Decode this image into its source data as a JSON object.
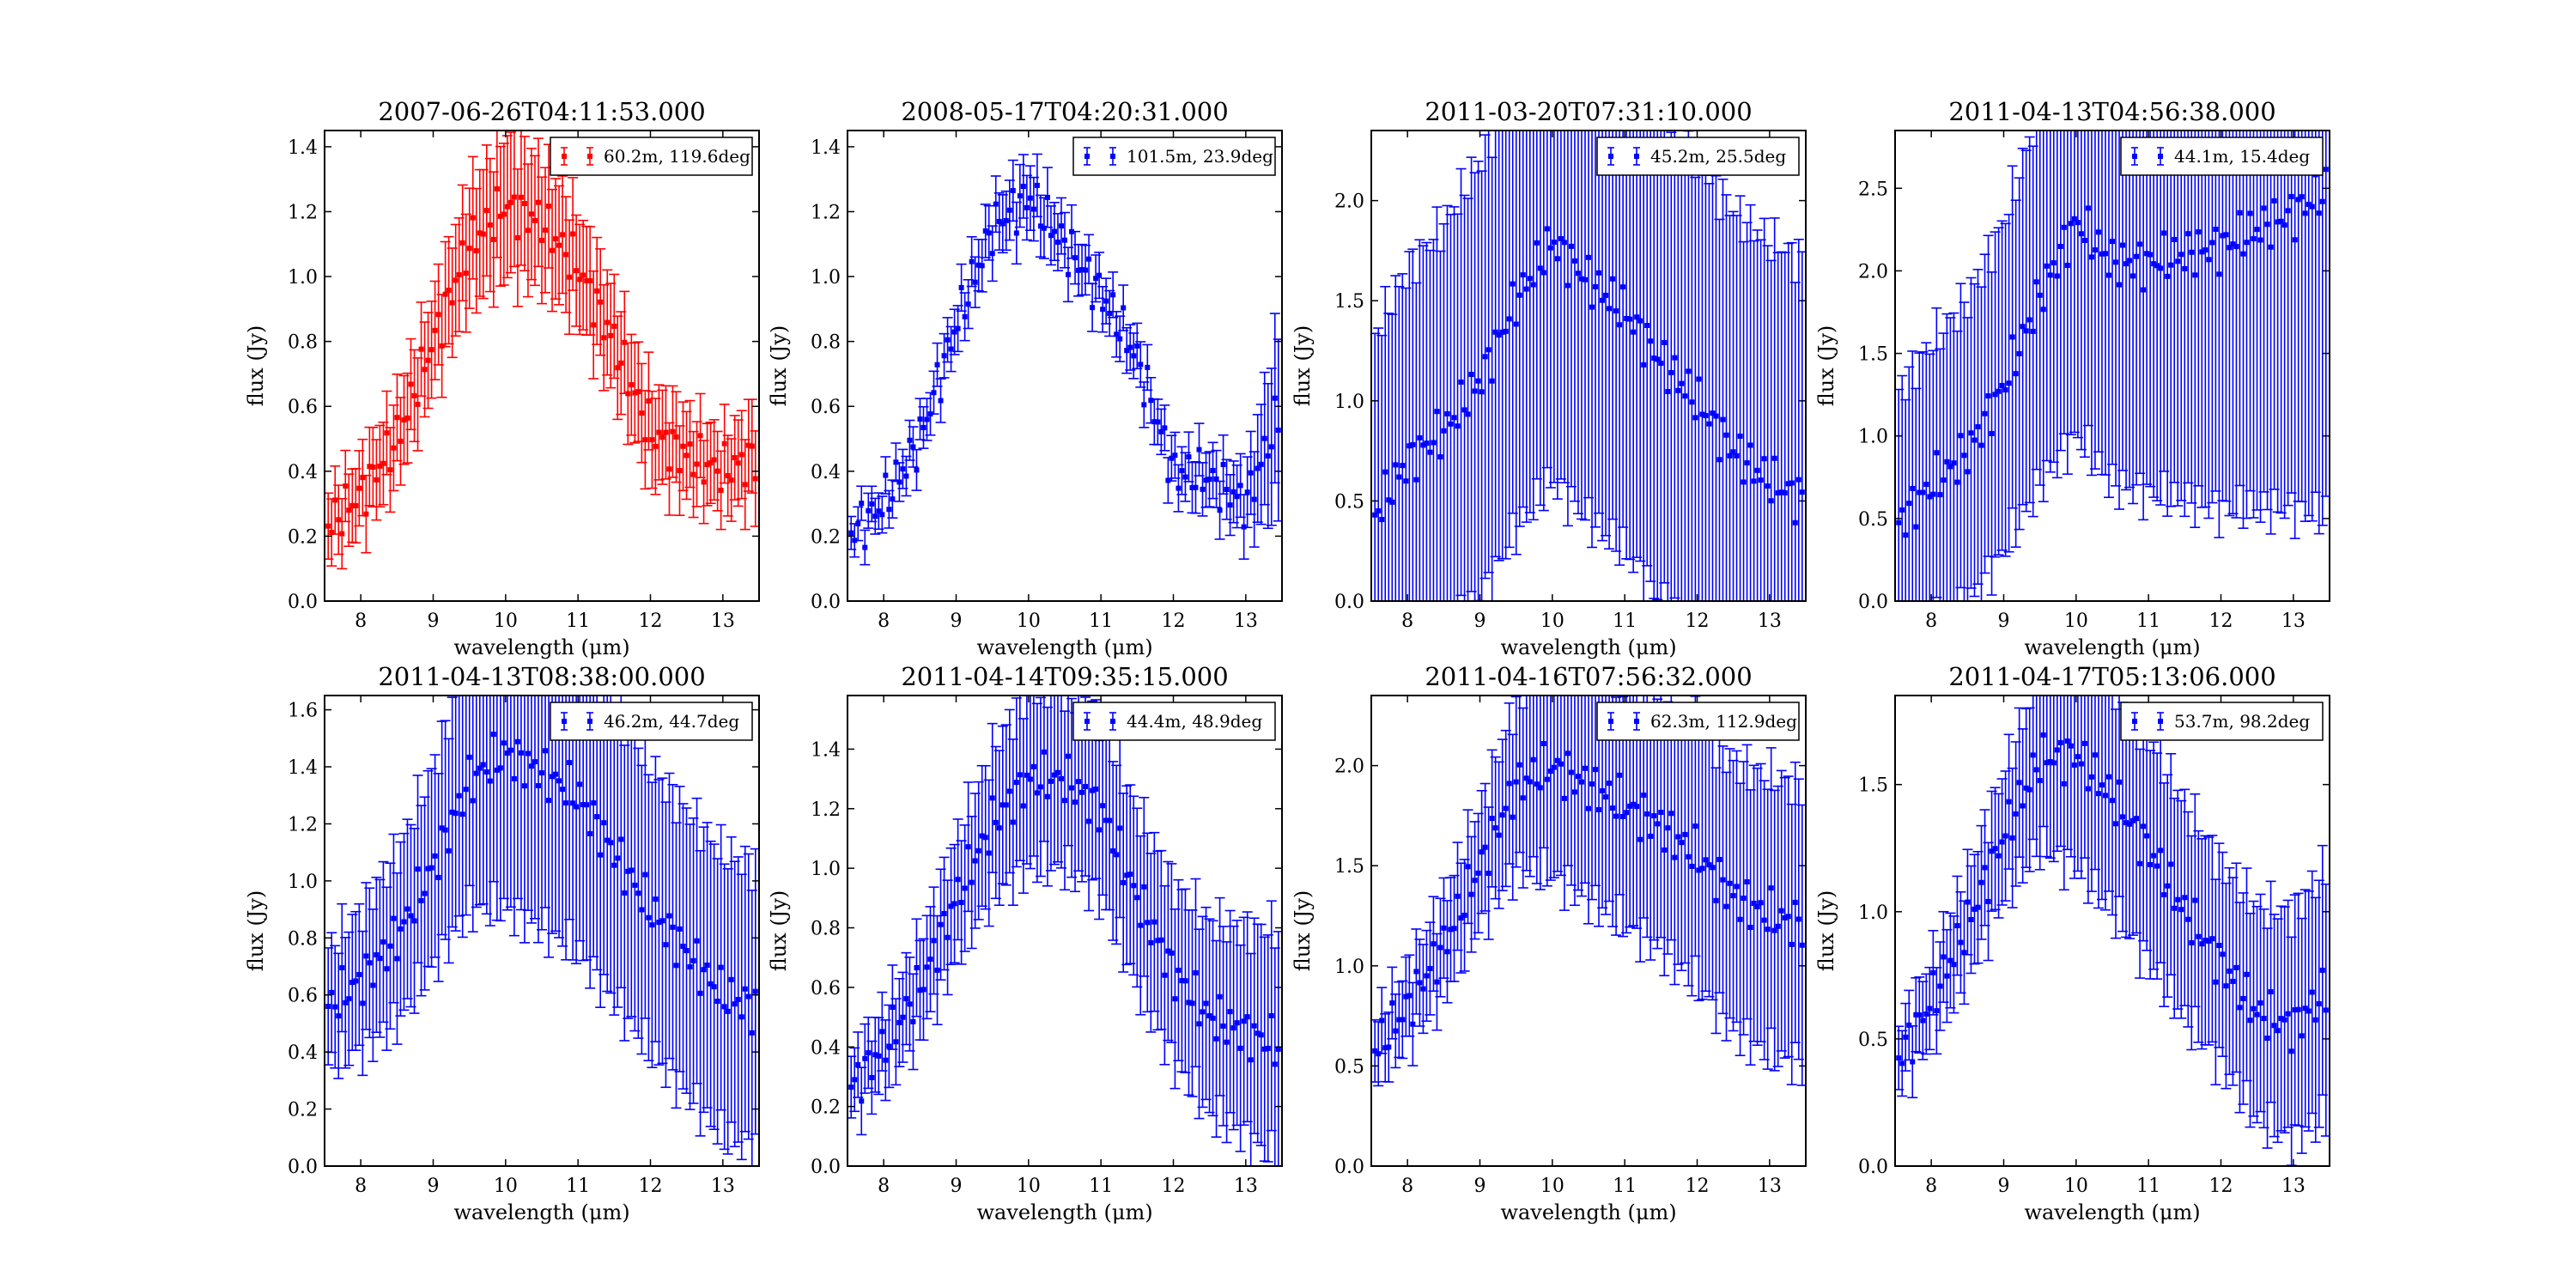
{
  "figure": {
    "xlabel": "wavelength (μm)",
    "ylabel": "flux (Jy)"
  },
  "chart_data": [
    {
      "type": "scatter",
      "title": "2007-06-26T04:11:53.000",
      "xlabel": "wavelength (μm)",
      "ylabel": "flux (Jy)",
      "xlim": [
        7.5,
        13.5
      ],
      "ylim": [
        0.0,
        1.45
      ],
      "xticks": [
        8,
        9,
        10,
        11,
        12,
        13
      ],
      "yticks": [
        0.0,
        0.2,
        0.4,
        0.6,
        0.8,
        1.0,
        1.2,
        1.4
      ],
      "color": "#ff0000",
      "legend_position": "top-right",
      "series": [
        {
          "name": "60.2m, 119.6deg",
          "x_range": [
            7.55,
            13.45
          ],
          "n_points": 125,
          "profile": {
            "x": [
              7.5,
              8.0,
              8.5,
              9.0,
              9.5,
              10.0,
              10.5,
              11.0,
              11.5,
              12.0,
              12.5,
              13.0,
              13.5
            ],
            "y": [
              0.22,
              0.33,
              0.5,
              0.8,
              1.1,
              1.22,
              1.17,
              1.03,
              0.8,
              0.52,
              0.45,
              0.4,
              0.45
            ]
          },
          "error": {
            "x": [
              7.5,
              9.0,
              10.0,
              11.0,
              12.0,
              13.0,
              13.5
            ],
            "yerr": [
              0.1,
              0.15,
              0.22,
              0.17,
              0.15,
              0.12,
              0.15
            ]
          }
        }
      ]
    },
    {
      "type": "scatter",
      "title": "2008-05-17T04:20:31.000",
      "xlabel": "wavelength (μm)",
      "ylabel": "flux (Jy)",
      "xlim": [
        7.5,
        13.5
      ],
      "ylim": [
        0.0,
        1.45
      ],
      "xticks": [
        8,
        9,
        10,
        11,
        12,
        13
      ],
      "yticks": [
        0.0,
        0.2,
        0.4,
        0.6,
        0.8,
        1.0,
        1.2,
        1.4
      ],
      "color": "#0000ff",
      "legend_position": "top-right",
      "series": [
        {
          "name": "101.5m, 23.9deg",
          "x_range": [
            7.55,
            13.45
          ],
          "n_points": 125,
          "profile": {
            "x": [
              7.5,
              8.0,
              8.5,
              9.0,
              9.5,
              10.0,
              10.5,
              11.0,
              11.5,
              12.0,
              12.5,
              13.0,
              13.5
            ],
            "y": [
              0.2,
              0.3,
              0.5,
              0.85,
              1.15,
              1.25,
              1.1,
              0.95,
              0.75,
              0.4,
              0.38,
              0.3,
              0.6
            ]
          },
          "error": {
            "x": [
              7.5,
              9.0,
              10.0,
              11.0,
              12.0,
              13.0,
              13.5
            ],
            "yerr": [
              0.05,
              0.07,
              0.1,
              0.07,
              0.07,
              0.1,
              0.3
            ]
          }
        }
      ]
    },
    {
      "type": "scatter",
      "title": "2011-03-20T07:31:10.000",
      "xlabel": "wavelength (μm)",
      "ylabel": "flux (Jy)",
      "xlim": [
        7.5,
        13.5
      ],
      "ylim": [
        0.0,
        2.35
      ],
      "xticks": [
        8,
        9,
        10,
        11,
        12,
        13
      ],
      "yticks": [
        0.0,
        0.5,
        1.0,
        1.5,
        2.0
      ],
      "color": "#0000ff",
      "legend_position": "top-right",
      "series": [
        {
          "name": "45.2m, 25.5deg",
          "x_range": [
            7.55,
            13.45
          ],
          "n_points": 125,
          "profile": {
            "x": [
              7.5,
              8.0,
              8.5,
              9.0,
              9.5,
              10.0,
              10.5,
              11.0,
              11.5,
              12.0,
              12.5,
              13.0,
              13.5
            ],
            "y": [
              0.4,
              0.7,
              0.85,
              1.1,
              1.5,
              1.8,
              1.6,
              1.45,
              1.2,
              1.0,
              0.75,
              0.6,
              0.5
            ]
          },
          "error": {
            "x": [
              7.5,
              9.0,
              10.0,
              11.0,
              12.0,
              13.0,
              13.5
            ],
            "yerr": [
              0.9,
              1.1,
              1.2,
              1.2,
              1.2,
              1.2,
              1.2
            ]
          }
        }
      ]
    },
    {
      "type": "scatter",
      "title": "2011-04-13T04:56:38.000",
      "xlabel": "wavelength (μm)",
      "ylabel": "flux (Jy)",
      "xlim": [
        7.5,
        13.5
      ],
      "ylim": [
        0.0,
        2.85
      ],
      "xticks": [
        8,
        9,
        10,
        11,
        12,
        13
      ],
      "yticks": [
        0.0,
        0.5,
        1.0,
        1.5,
        2.0,
        2.5
      ],
      "color": "#0000ff",
      "legend_position": "top-right",
      "series": [
        {
          "name": "44.1m, 15.4deg",
          "x_range": [
            7.55,
            13.45
          ],
          "n_points": 125,
          "profile": {
            "x": [
              7.5,
              8.0,
              8.5,
              9.0,
              9.5,
              10.0,
              10.5,
              11.0,
              11.5,
              12.0,
              12.5,
              13.0,
              13.5
            ],
            "y": [
              0.45,
              0.7,
              0.9,
              1.3,
              1.85,
              2.3,
              2.05,
              2.05,
              2.1,
              2.15,
              2.25,
              2.35,
              2.5
            ]
          },
          "error": {
            "x": [
              7.5,
              9.0,
              10.0,
              11.0,
              12.0,
              13.0,
              13.5
            ],
            "yerr": [
              0.8,
              1.0,
              1.3,
              1.4,
              1.6,
              1.8,
              2.0
            ]
          }
        }
      ]
    },
    {
      "type": "scatter",
      "title": "2011-04-13T08:38:00.000",
      "xlabel": "wavelength (μm)",
      "ylabel": "flux (Jy)",
      "xlim": [
        7.5,
        13.5
      ],
      "ylim": [
        0.0,
        1.65
      ],
      "xticks": [
        8,
        9,
        10,
        11,
        12,
        13
      ],
      "yticks": [
        0.0,
        0.2,
        0.4,
        0.6,
        0.8,
        1.0,
        1.2,
        1.4,
        1.6
      ],
      "color": "#0000ff",
      "legend_position": "top-right",
      "series": [
        {
          "name": "46.2m, 44.7deg",
          "x_range": [
            7.55,
            13.45
          ],
          "n_points": 125,
          "profile": {
            "x": [
              7.5,
              8.0,
              8.5,
              9.0,
              9.5,
              10.0,
              10.5,
              11.0,
              11.5,
              12.0,
              12.5,
              13.0,
              13.5
            ],
            "y": [
              0.55,
              0.65,
              0.8,
              1.05,
              1.35,
              1.45,
              1.38,
              1.3,
              1.1,
              0.9,
              0.75,
              0.6,
              0.55
            ]
          },
          "error": {
            "x": [
              7.5,
              9.0,
              10.0,
              11.0,
              12.0,
              13.0,
              13.5
            ],
            "yerr": [
              0.2,
              0.35,
              0.55,
              0.55,
              0.5,
              0.5,
              0.5
            ]
          }
        }
      ]
    },
    {
      "type": "scatter",
      "title": "2011-04-14T09:35:15.000",
      "xlabel": "wavelength (μm)",
      "ylabel": "flux (Jy)",
      "xlim": [
        7.5,
        13.5
      ],
      "ylim": [
        0.0,
        1.58
      ],
      "xticks": [
        8,
        9,
        10,
        11,
        12,
        13
      ],
      "yticks": [
        0.0,
        0.2,
        0.4,
        0.6,
        0.8,
        1.0,
        1.2,
        1.4
      ],
      "color": "#0000ff",
      "legend_position": "top-right",
      "series": [
        {
          "name": "44.4m, 48.9deg",
          "x_range": [
            7.55,
            13.45
          ],
          "n_points": 125,
          "profile": {
            "x": [
              7.5,
              8.0,
              8.5,
              9.0,
              9.5,
              10.0,
              10.5,
              11.0,
              11.5,
              12.0,
              12.5,
              13.0,
              13.5
            ],
            "y": [
              0.25,
              0.4,
              0.6,
              0.9,
              1.15,
              1.3,
              1.3,
              1.2,
              0.9,
              0.65,
              0.5,
              0.45,
              0.4
            ]
          },
          "error": {
            "x": [
              7.5,
              9.0,
              10.0,
              11.0,
              12.0,
              13.0,
              13.5
            ],
            "yerr": [
              0.1,
              0.2,
              0.3,
              0.3,
              0.3,
              0.35,
              0.4
            ]
          }
        }
      ]
    },
    {
      "type": "scatter",
      "title": "2011-04-16T07:56:32.000",
      "xlabel": "wavelength (μm)",
      "ylabel": "flux (Jy)",
      "xlim": [
        7.5,
        13.5
      ],
      "ylim": [
        0.0,
        2.35
      ],
      "xticks": [
        8,
        9,
        10,
        11,
        12,
        13
      ],
      "yticks": [
        0.0,
        0.5,
        1.0,
        1.5,
        2.0
      ],
      "color": "#0000ff",
      "legend_position": "top-right",
      "series": [
        {
          "name": "62.3m, 112.9deg",
          "x_range": [
            7.55,
            13.45
          ],
          "n_points": 125,
          "profile": {
            "x": [
              7.5,
              8.0,
              8.5,
              9.0,
              9.5,
              10.0,
              10.5,
              11.0,
              11.5,
              12.0,
              12.5,
              13.0,
              13.5
            ],
            "y": [
              0.55,
              0.8,
              1.1,
              1.5,
              1.9,
              2.0,
              1.9,
              1.8,
              1.7,
              1.55,
              1.35,
              1.25,
              1.2
            ]
          },
          "error": {
            "x": [
              7.5,
              9.0,
              10.0,
              11.0,
              12.0,
              13.0,
              13.5
            ],
            "yerr": [
              0.15,
              0.3,
              0.55,
              0.6,
              0.65,
              0.7,
              0.7
            ]
          }
        }
      ]
    },
    {
      "type": "scatter",
      "title": "2011-04-17T05:13:06.000",
      "xlabel": "wavelength (μm)",
      "ylabel": "flux (Jy)",
      "xlim": [
        7.5,
        13.5
      ],
      "ylim": [
        0.0,
        1.85
      ],
      "xticks": [
        8,
        9,
        10,
        11,
        12,
        13
      ],
      "yticks": [
        0.0,
        0.5,
        1.0,
        1.5
      ],
      "color": "#0000ff",
      "legend_position": "top-right",
      "series": [
        {
          "name": "53.7m, 98.2deg",
          "x_range": [
            7.55,
            13.45
          ],
          "n_points": 125,
          "profile": {
            "x": [
              7.5,
              8.0,
              8.5,
              9.0,
              9.5,
              10.0,
              10.5,
              11.0,
              11.5,
              12.0,
              12.5,
              13.0,
              13.5
            ],
            "y": [
              0.4,
              0.65,
              0.95,
              1.3,
              1.6,
              1.62,
              1.45,
              1.25,
              1.0,
              0.8,
              0.6,
              0.55,
              0.7
            ]
          },
          "error": {
            "x": [
              7.5,
              9.0,
              10.0,
              11.0,
              12.0,
              13.0,
              13.5
            ],
            "yerr": [
              0.12,
              0.25,
              0.45,
              0.45,
              0.4,
              0.45,
              0.5
            ]
          }
        }
      ]
    }
  ]
}
